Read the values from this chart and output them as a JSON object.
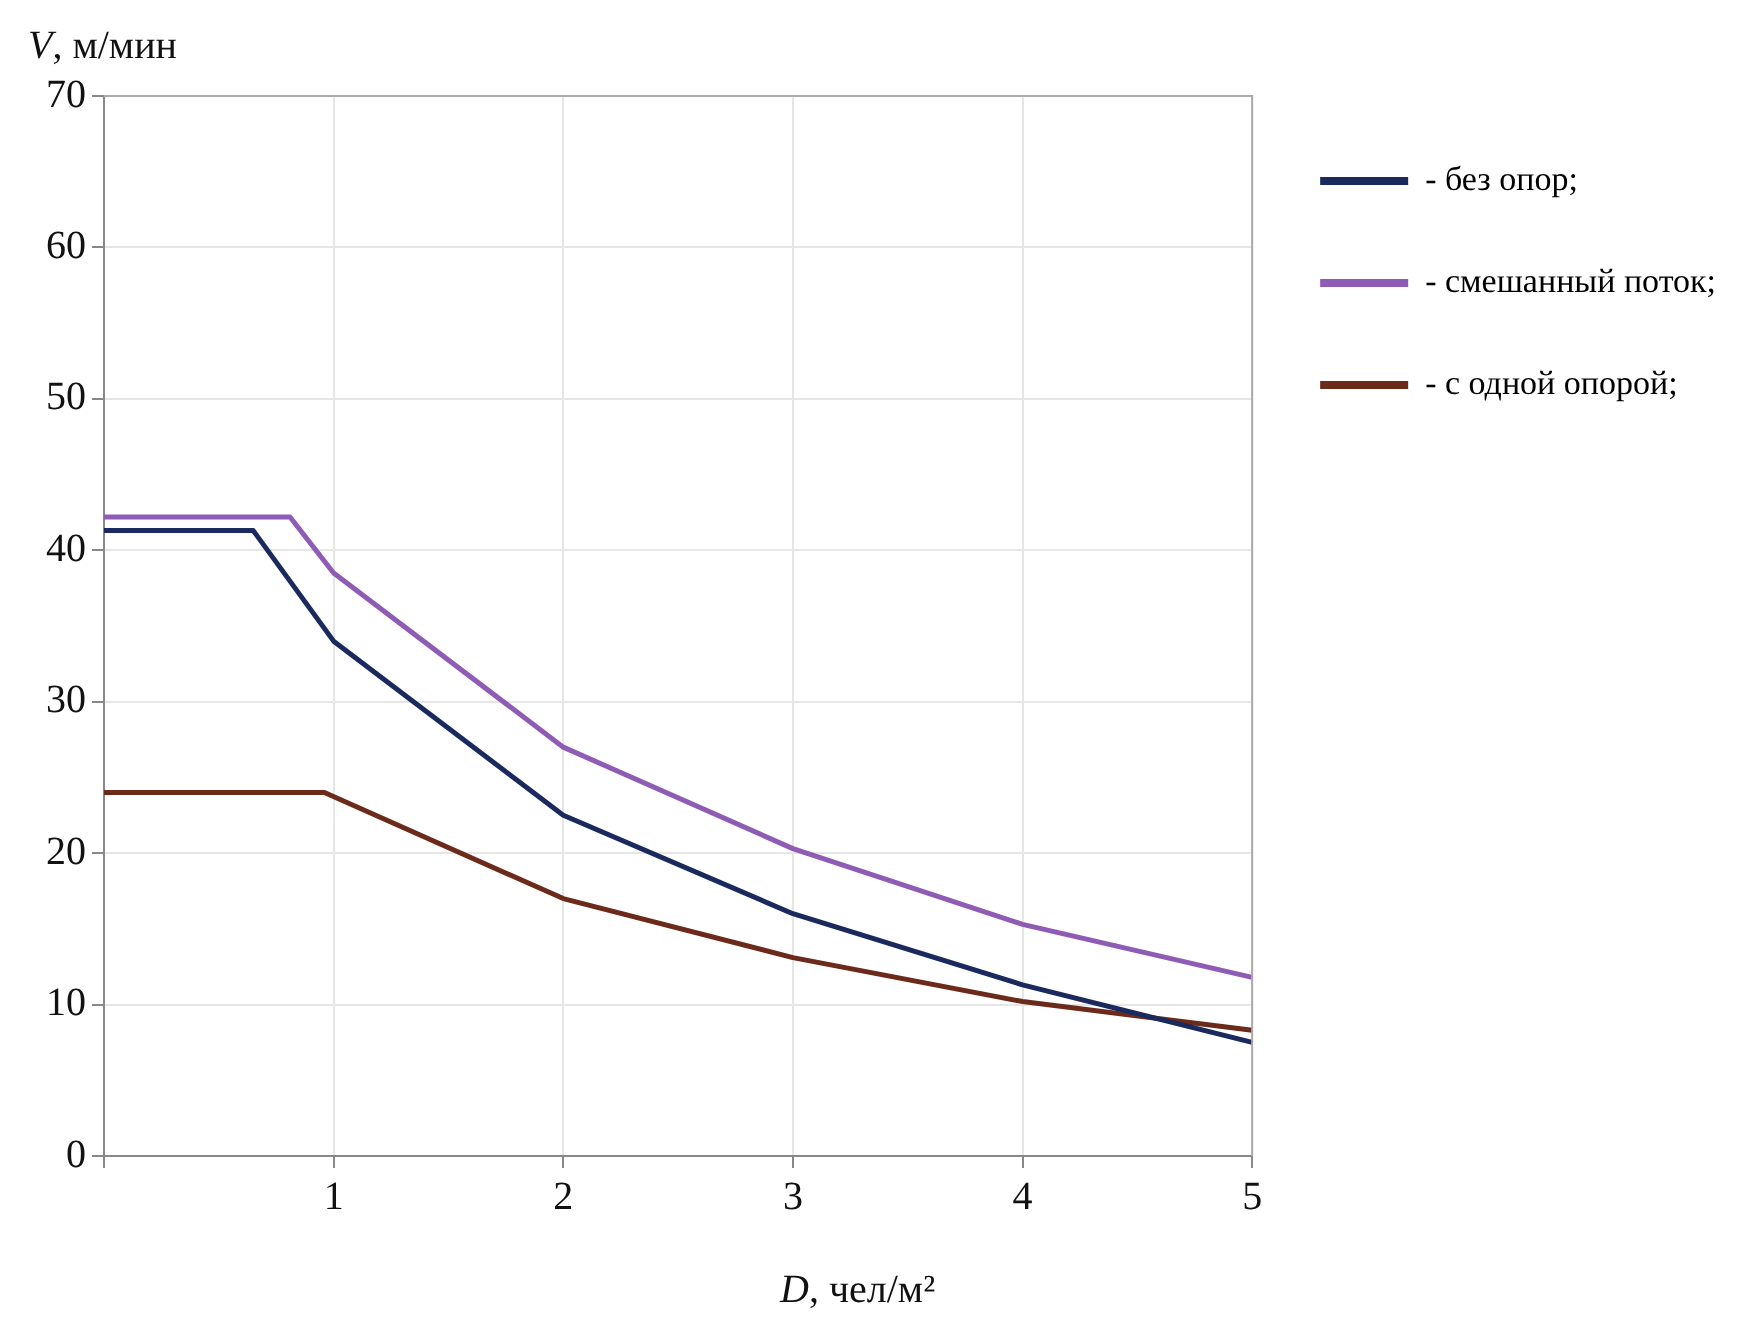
{
  "chart_data": {
    "type": "line",
    "xlabel": "D, чел/м²",
    "ylabel": "V, м/мин",
    "xlim": [
      0,
      5
    ],
    "xticks": [
      {
        "value": 0,
        "label": null
      },
      1,
      2,
      3,
      4,
      5
    ],
    "ylim": [
      0,
      70
    ],
    "yticks": [
      0,
      10,
      20,
      30,
      40,
      50,
      60,
      70
    ],
    "grid": true,
    "legend": "right",
    "marker": "none",
    "line_style": "solid",
    "series": [
      {
        "name": "- без опор;",
        "color": "#1a2a5e",
        "x": [
          0,
          0.65,
          1,
          2,
          3,
          4,
          5
        ],
        "values": [
          41.3,
          41.3,
          34,
          22.5,
          16,
          11.3,
          7.5
        ]
      },
      {
        "name": "- смешанный поток;",
        "color": "#8e5bb5",
        "x": [
          0,
          0.81,
          1,
          2,
          3,
          4,
          5
        ],
        "values": [
          42.2,
          42.2,
          38.5,
          27,
          20.3,
          15.3,
          11.8
        ]
      },
      {
        "name": "- с одной опорой;",
        "color": "#6b2a1a",
        "x": [
          0,
          0.96,
          2,
          3,
          4,
          5
        ],
        "values": [
          24,
          24,
          17,
          13.1,
          10.2,
          8.3
        ]
      }
    ]
  }
}
